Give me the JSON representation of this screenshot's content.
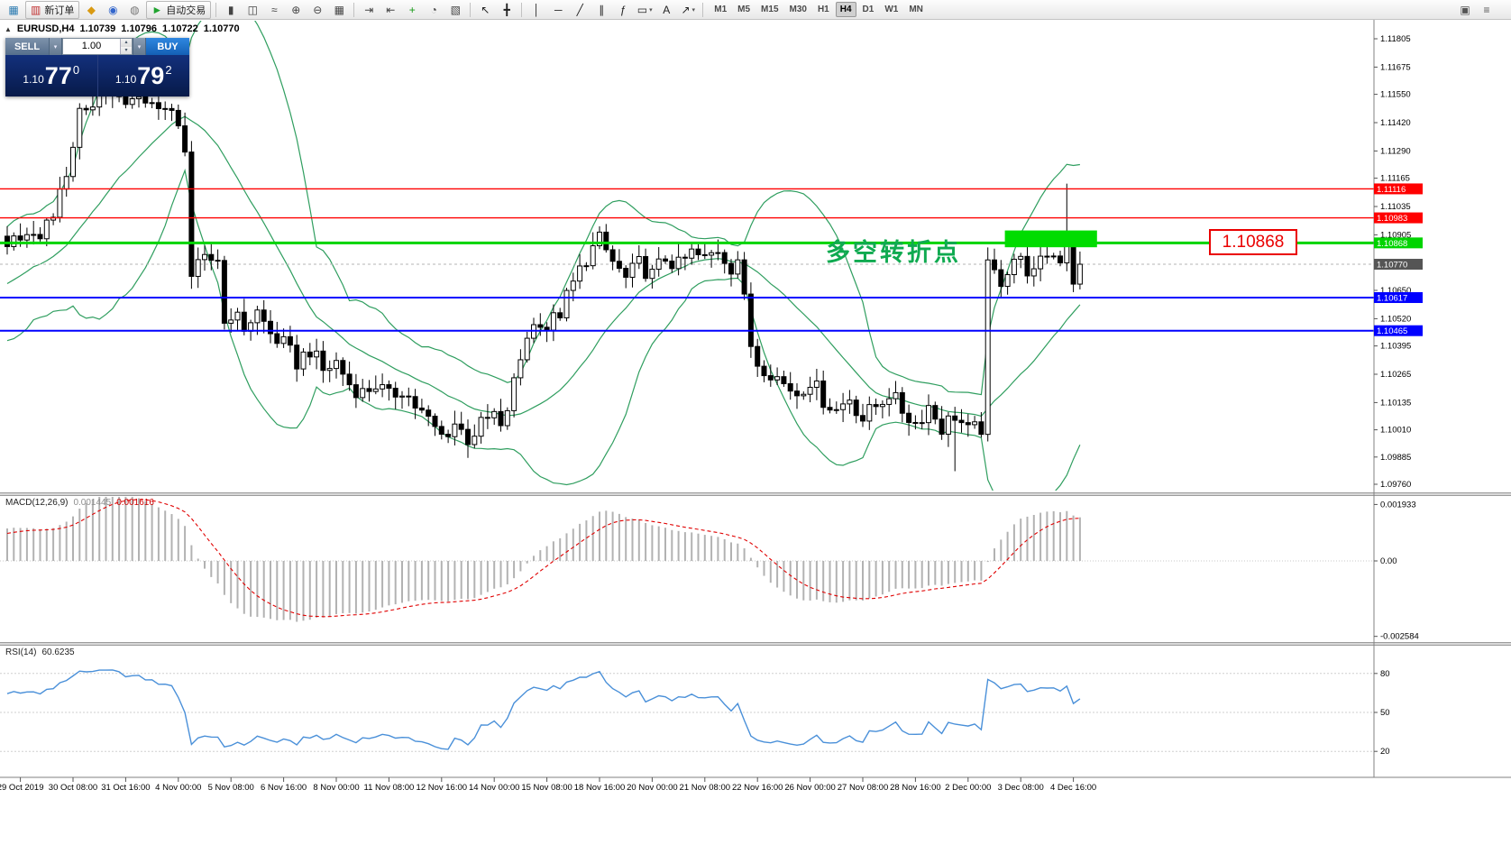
{
  "toolbar": {
    "groups": [
      {
        "name": "trade",
        "items": [
          {
            "name": "app-chart-icon",
            "glyph": "▦",
            "color": "#2a7ab0"
          },
          {
            "name": "new-order-button",
            "glyph": "▥",
            "color": "#c03030",
            "label": "新订单"
          },
          {
            "name": "expert-advisors-icon",
            "glyph": "◆",
            "color": "#d99a12"
          },
          {
            "name": "market-watch-icon",
            "glyph": "◉",
            "color": "#3366cc"
          },
          {
            "name": "sound-icon",
            "glyph": "◍",
            "color": "#777777"
          },
          {
            "name": "autotrading-button",
            "glyph": "►",
            "color": "#1fa32e",
            "label": "自动交易"
          }
        ]
      },
      {
        "name": "chart-controls",
        "items": [
          {
            "name": "bar-chart-icon",
            "glyph": "▮",
            "color": "#444444"
          },
          {
            "name": "candlestick-icon",
            "glyph": "◫",
            "color": "#444444"
          },
          {
            "name": "line-chart-icon",
            "glyph": "≈",
            "color": "#444444"
          },
          {
            "name": "zoom-in-icon",
            "glyph": "⊕",
            "color": "#444444"
          },
          {
            "name": "zoom-out-icon",
            "glyph": "⊖",
            "color": "#444444"
          },
          {
            "name": "tile-windows-icon",
            "glyph": "▦",
            "color": "#444444"
          }
        ]
      },
      {
        "name": "chart-extra",
        "items": [
          {
            "name": "auto-scroll-icon",
            "glyph": "⇥",
            "color": "#444444"
          },
          {
            "name": "chart-shift-icon",
            "glyph": "⇤",
            "color": "#444444"
          },
          {
            "name": "indicators-icon",
            "glyph": "+",
            "color": "#169a16"
          },
          {
            "name": "periods-icon",
            "glyph": "◔",
            "color": "#444444"
          },
          {
            "name": "templates-icon",
            "glyph": "▧",
            "color": "#444444"
          }
        ]
      },
      {
        "name": "tools",
        "items": [
          {
            "name": "cursor-icon",
            "glyph": "↖",
            "color": "#222222"
          },
          {
            "name": "crosshair-icon",
            "glyph": "╋",
            "color": "#222222"
          }
        ]
      },
      {
        "name": "draw",
        "items": [
          {
            "name": "vertical-line-icon",
            "glyph": "│",
            "color": "#222222"
          },
          {
            "name": "horizontal-line-icon",
            "glyph": "─",
            "color": "#222222"
          },
          {
            "name": "trendline-icon",
            "glyph": "╱",
            "color": "#222222"
          },
          {
            "name": "channel-icon",
            "glyph": "∥",
            "color": "#222222"
          },
          {
            "name": "fibonacci-icon",
            "glyph": "ƒ",
            "color": "#222222"
          },
          {
            "name": "shapes-icon",
            "glyph": "▭",
            "color": "#222222",
            "caret": true
          },
          {
            "name": "text-icon",
            "glyph": "A",
            "color": "#222222"
          },
          {
            "name": "arrows-icon",
            "glyph": "↗",
            "color": "#222222",
            "caret": true
          }
        ]
      }
    ],
    "timeframes": [
      "M1",
      "M5",
      "M15",
      "M30",
      "H1",
      "H4",
      "D1",
      "W1",
      "MN"
    ],
    "active_timeframe": "H4",
    "right_items": [
      {
        "name": "dock-icon",
        "glyph": "▣",
        "color": "#555555"
      },
      {
        "name": "menu-icon",
        "glyph": "≡",
        "color": "#555555"
      }
    ]
  },
  "quote_header": {
    "collapse_glyph": "▲",
    "symbol": "EURUSD,H4",
    "open": "1.10739",
    "high": "1.10796",
    "low": "1.10722",
    "close": "1.10770"
  },
  "trade_panel": {
    "sell_label": "SELL",
    "buy_label": "BUY",
    "volume": "1.00",
    "sell_prefix": "1.10",
    "sell_big": "77",
    "sell_sup": "0",
    "buy_prefix": "1.10",
    "buy_big": "79",
    "buy_sup": "2",
    "caret_down": "▾",
    "caret_up": "▴"
  },
  "annotations": {
    "turning_point_text": "多空转折点",
    "turning_point_color": "#0faa50",
    "price_flag_text": "1.10868",
    "price_flag_color": "#ea0000",
    "zone": {
      "price_top": 1.10925,
      "price_bottom": 1.10848,
      "bar_start": 152,
      "bar_end": 166,
      "color": "#00dc00"
    }
  },
  "chart_data": {
    "type": "candlestick",
    "symbol": "EURUSD",
    "period": "H4",
    "bars": 164,
    "last_price": 1.1077,
    "current_price_label": "1.10770",
    "current_price_box": "#555555",
    "price_path": [
      [
        0,
        1.1082
      ],
      [
        2,
        1.1092
      ],
      [
        4,
        1.1087
      ],
      [
        6,
        1.1095
      ],
      [
        8,
        1.1108
      ],
      [
        10,
        1.1132
      ],
      [
        11,
        1.1148
      ],
      [
        13,
        1.115
      ],
      [
        15,
        1.1158
      ],
      [
        17,
        1.115
      ],
      [
        19,
        1.1155
      ],
      [
        21,
        1.1148
      ],
      [
        23,
        1.1152
      ],
      [
        25,
        1.1145
      ],
      [
        27,
        1.1132
      ],
      [
        28,
        1.1072
      ],
      [
        30,
        1.1078
      ],
      [
        32,
        1.108
      ],
      [
        33,
        1.105
      ],
      [
        34,
        1.1055
      ],
      [
        36,
        1.1048
      ],
      [
        38,
        1.1055
      ],
      [
        40,
        1.1045
      ],
      [
        42,
        1.104
      ],
      [
        44,
        1.1032
      ],
      [
        46,
        1.1038
      ],
      [
        48,
        1.1028
      ],
      [
        50,
        1.1032
      ],
      [
        52,
        1.1022
      ],
      [
        54,
        1.1018
      ],
      [
        56,
        1.1022
      ],
      [
        58,
        1.1016
      ],
      [
        60,
        1.102
      ],
      [
        62,
        1.1012
      ],
      [
        64,
        1.1005
      ],
      [
        66,
        1.0998
      ],
      [
        68,
        1.1004
      ],
      [
        70,
        1.0997
      ],
      [
        72,
        1.1003
      ],
      [
        74,
        1.1008
      ],
      [
        75,
        1.1
      ],
      [
        77,
        1.1022
      ],
      [
        79,
        1.1045
      ],
      [
        81,
        1.1052
      ],
      [
        82,
        1.1048
      ],
      [
        84,
        1.1055
      ],
      [
        86,
        1.1068
      ],
      [
        88,
        1.108
      ],
      [
        90,
        1.1088
      ],
      [
        92,
        1.1078
      ],
      [
        94,
        1.107
      ],
      [
        96,
        1.1077
      ],
      [
        98,
        1.1072
      ],
      [
        100,
        1.108
      ],
      [
        102,
        1.1076
      ],
      [
        104,
        1.1082
      ],
      [
        106,
        1.1079
      ],
      [
        108,
        1.1084
      ],
      [
        110,
        1.1076
      ],
      [
        111,
        1.108
      ],
      [
        113,
        1.104
      ],
      [
        114,
        1.1032
      ],
      [
        116,
        1.1028
      ],
      [
        118,
        1.1022
      ],
      [
        120,
        1.1018
      ],
      [
        122,
        1.1024
      ],
      [
        124,
        1.1015
      ],
      [
        126,
        1.101
      ],
      [
        128,
        1.1016
      ],
      [
        130,
        1.1006
      ],
      [
        132,
        1.1012
      ],
      [
        134,
        1.1018
      ],
      [
        136,
        1.101
      ],
      [
        138,
        1.1004
      ],
      [
        140,
        1.1012
      ],
      [
        142,
        1.1002
      ],
      [
        144,
        1.1008
      ],
      [
        146,
        1.1
      ],
      [
        148,
        1.1002
      ],
      [
        149,
        1.1075
      ],
      [
        151,
        1.107
      ],
      [
        153,
        1.108
      ],
      [
        154,
        1.1078
      ],
      [
        156,
        1.1072
      ],
      [
        158,
        1.1082
      ],
      [
        160,
        1.108
      ],
      [
        161,
        1.109
      ],
      [
        162,
        1.107
      ],
      [
        163,
        1.1077
      ]
    ],
    "wick_overrides": [
      {
        "i": 70,
        "low": 1.0993
      },
      {
        "i": 144,
        "low": 1.0982
      },
      {
        "i": 161,
        "high": 1.1114
      }
    ],
    "levels": [
      {
        "price": 1.11116,
        "label": "1.11116",
        "color": "#ff0000",
        "width": 1.4
      },
      {
        "price": 1.10983,
        "label": "1.10983",
        "color": "#ff0000",
        "width": 1.4
      },
      {
        "price": 1.10868,
        "label": "1.10868",
        "color": "#00d400",
        "width": 3
      },
      {
        "price": 1.10617,
        "label": "1.10617",
        "color": "#0000ff",
        "width": 2
      },
      {
        "price": 1.10465,
        "label": "1.10465",
        "color": "#0000ff",
        "width": 2
      }
    ],
    "price_ticks": [
      "1.11805",
      "1.11675",
      "1.11550",
      "1.11420",
      "1.11290",
      "1.11165",
      "1.11035",
      "1.10905",
      "1.10650",
      "1.10520",
      "1.10395",
      "1.10265",
      "1.10135",
      "1.10010",
      "1.09885",
      "1.09760"
    ],
    "time_labels": [
      {
        "t": "29 Oct 2019",
        "i": 2
      },
      {
        "t": "30 Oct 08:00",
        "i": 10
      },
      {
        "t": "31 Oct 16:00",
        "i": 18
      },
      {
        "t": "4 Nov 00:00",
        "i": 26
      },
      {
        "t": "5 Nov 08:00",
        "i": 34
      },
      {
        "t": "6 Nov 16:00",
        "i": 42
      },
      {
        "t": "8 Nov 00:00",
        "i": 50
      },
      {
        "t": "11 Nov 08:00",
        "i": 58
      },
      {
        "t": "12 Nov 16:00",
        "i": 66
      },
      {
        "t": "14 Nov 00:00",
        "i": 74
      },
      {
        "t": "15 Nov 08:00",
        "i": 82
      },
      {
        "t": "18 Nov 16:00",
        "i": 90
      },
      {
        "t": "20 Nov 00:00",
        "i": 98
      },
      {
        "t": "21 Nov 08:00",
        "i": 106
      },
      {
        "t": "22 Nov 16:00",
        "i": 114
      },
      {
        "t": "26 Nov 00:00",
        "i": 122
      },
      {
        "t": "27 Nov 08:00",
        "i": 130
      },
      {
        "t": "28 Nov 16:00",
        "i": 138
      },
      {
        "t": "2 Dec 00:00",
        "i": 146
      },
      {
        "t": "3 Dec 08:00",
        "i": 154
      },
      {
        "t": "4 Dec 16:00",
        "i": 162
      }
    ],
    "bollinger": {
      "period": 20,
      "deviation": 2,
      "color": "#2f9e5f"
    },
    "candle_colors": {
      "up_fill": "#ffffff",
      "down_fill": "#000000",
      "outline": "#000000"
    }
  },
  "macd": {
    "name": "MACD(12,26,9)",
    "value_main": "0.001445",
    "value_signal": "0.001616",
    "scale": [
      "0.001933",
      "0.00",
      "-0.002584"
    ],
    "params": {
      "fast": 12,
      "slow": 26,
      "signal": 9
    },
    "histogram_color": "#b2b2b2",
    "signal_color": "#e00000"
  },
  "rsi": {
    "name": "RSI(14)",
    "value": "60.6235",
    "period": 14,
    "levels": [
      80,
      50,
      20
    ],
    "line_color": "#4a90d9"
  }
}
